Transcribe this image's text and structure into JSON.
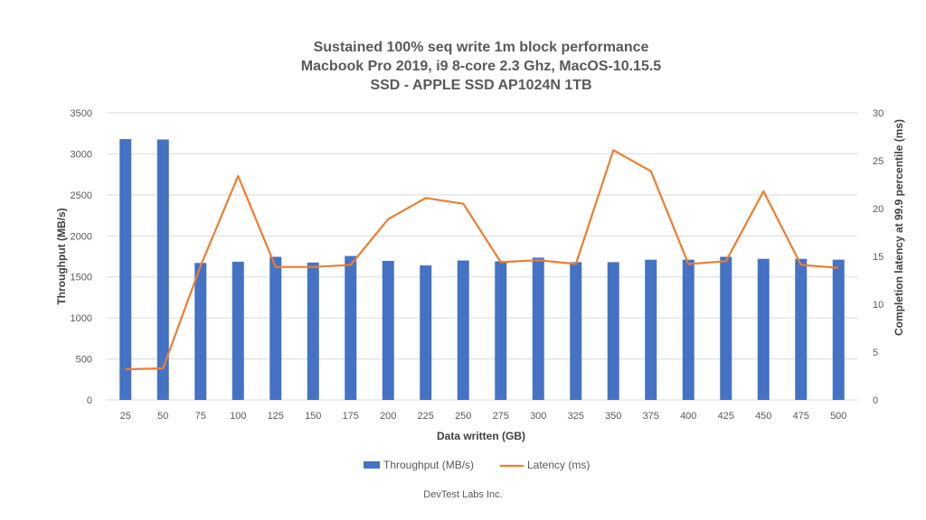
{
  "chart_data": {
    "type": "bar",
    "title": [
      "Sustained 100% seq write 1m block performance",
      "Macbook Pro 2019, i9 8-core 2.3 Ghz, MacOS-10.15.5",
      "SSD - APPLE SSD AP1024N 1TB"
    ],
    "categories": [
      "25",
      "50",
      "75",
      "100",
      "125",
      "150",
      "175",
      "200",
      "225",
      "250",
      "275",
      "300",
      "325",
      "350",
      "375",
      "400",
      "425",
      "450",
      "475",
      "500"
    ],
    "xlabel": "Data written (GB)",
    "ylabel": "Throughput (MB/s)",
    "y2label": "Completion latency at 99.9 percentile (ms)",
    "ylim": [
      0,
      3500
    ],
    "y_ticks": [
      "0",
      "500",
      "1000",
      "1500",
      "2000",
      "2500",
      "3000",
      "3500"
    ],
    "y2lim": [
      0,
      30
    ],
    "y2_ticks": [
      "0",
      "5",
      "10",
      "15",
      "20",
      "25",
      "30"
    ],
    "grid": true,
    "legend_position": "bottom",
    "series": [
      {
        "name": "Throughput (MB/s)",
        "kind": "bar",
        "axis": "left",
        "color": "#4472C4",
        "values": [
          3180,
          3175,
          1670,
          1685,
          1745,
          1675,
          1755,
          1695,
          1640,
          1700,
          1690,
          1735,
          1680,
          1680,
          1710,
          1710,
          1745,
          1720,
          1720,
          1710
        ]
      },
      {
        "name": "Latency (ms)",
        "kind": "line",
        "axis": "right",
        "color": "#ED7D31",
        "values": [
          3.2,
          3.3,
          14.0,
          23.4,
          13.9,
          13.9,
          14.1,
          18.9,
          21.1,
          20.5,
          14.4,
          14.6,
          14.2,
          26.1,
          23.9,
          14.2,
          14.5,
          21.8,
          14.1,
          13.8
        ]
      }
    ]
  },
  "footer_text": "DevTest Labs Inc."
}
